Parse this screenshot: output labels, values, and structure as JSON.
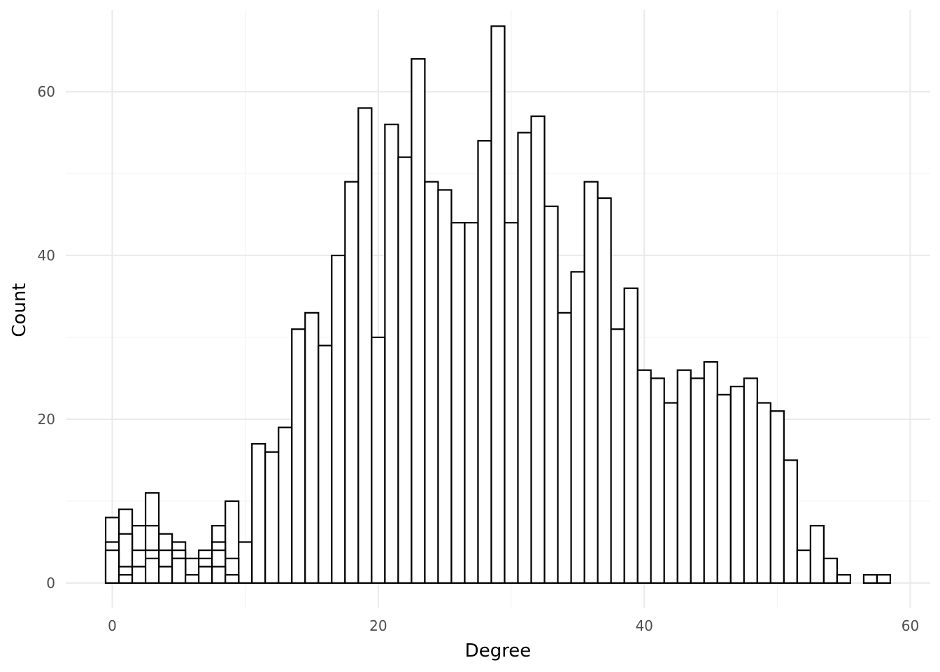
{
  "chart_data": {
    "type": "bar",
    "subtype": "histogram (overlapping layers)",
    "title": "",
    "xlabel": "Degree",
    "ylabel": "Count",
    "xlim": [
      -3.5,
      61.5
    ],
    "ylim": [
      -3,
      70
    ],
    "x_ticks": [
      0,
      20,
      40,
      60
    ],
    "y_ticks": [
      0,
      20,
      40,
      60
    ],
    "x_minor_ticks": [
      10,
      30,
      50
    ],
    "y_minor_ticks": [
      10,
      30,
      50
    ],
    "grid": true,
    "legend": "none",
    "bar_fill": "#ffffff",
    "bar_outline": "#000000",
    "grid_major_color": "#ebebeb",
    "grid_minor_color": "#f3f3f3",
    "series": [
      {
        "x": [
          0,
          1,
          2,
          3,
          4,
          5,
          6,
          7,
          8,
          9,
          10,
          11,
          12,
          13,
          14,
          15,
          16,
          17,
          18,
          19,
          20,
          21,
          22,
          23,
          24,
          25,
          26,
          27,
          28,
          29,
          30,
          31,
          32,
          33,
          34,
          35,
          36,
          37,
          38,
          39,
          40,
          41,
          42,
          43,
          44,
          45,
          46,
          47,
          48,
          49,
          50,
          51,
          52,
          53,
          54,
          55,
          57,
          58
        ],
        "values": [
          8,
          9,
          7,
          11,
          6,
          5,
          3,
          4,
          7,
          10,
          5,
          17,
          16,
          19,
          31,
          33,
          29,
          40,
          49,
          58,
          30,
          56,
          52,
          64,
          49,
          48,
          44,
          44,
          54,
          68,
          44,
          55,
          57,
          46,
          33,
          38,
          49,
          47,
          31,
          36,
          26,
          25,
          22,
          26,
          25,
          27,
          23,
          24,
          25,
          22,
          21,
          15,
          4,
          7,
          3,
          1,
          1,
          1
        ]
      },
      {
        "x": [
          0,
          1,
          2,
          3,
          4,
          5,
          6,
          7,
          8,
          9
        ],
        "values": [
          5,
          6,
          4,
          7,
          4,
          4,
          1,
          3,
          5,
          3
        ]
      },
      {
        "x": [
          0,
          1,
          2,
          3,
          4,
          5,
          6,
          7,
          8,
          9
        ],
        "values": [
          4,
          2,
          2,
          4,
          2,
          3,
          1,
          2,
          4,
          1
        ]
      },
      {
        "x": [
          1,
          2,
          3,
          4,
          5,
          6,
          7,
          8,
          9
        ],
        "values": [
          1,
          2,
          3,
          2,
          3,
          1,
          2,
          2,
          1
        ]
      }
    ]
  }
}
